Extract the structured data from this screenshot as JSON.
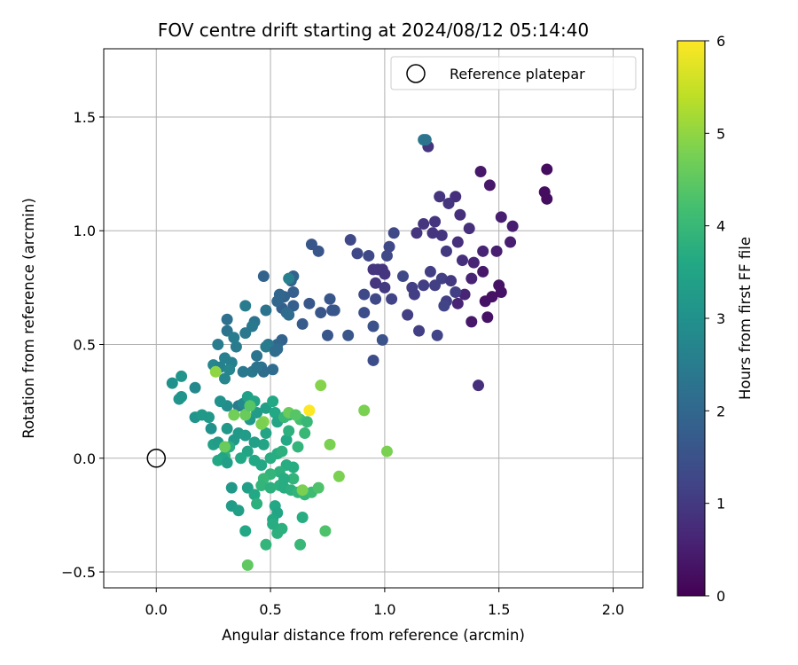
{
  "chart_data": {
    "type": "scatter",
    "title": "FOV centre drift starting at 2024/08/12 05:14:40",
    "xlabel": "Angular distance from reference (arcmin)",
    "ylabel": "Rotation from reference (arcmin)",
    "xlim": [
      -0.23,
      2.13
    ],
    "ylim": [
      -0.57,
      1.8
    ],
    "xticks": [
      0.0,
      0.5,
      1.0,
      1.5,
      2.0
    ],
    "xtick_labels": [
      "0.0",
      "0.5",
      "1.0",
      "1.5",
      "2.0"
    ],
    "yticks": [
      -0.5,
      0.0,
      0.5,
      1.0,
      1.5
    ],
    "ytick_labels": [
      "−0.5",
      "0.0",
      "0.5",
      "1.0",
      "1.5"
    ],
    "grid": true,
    "legend": {
      "placement": "top-right",
      "entries": [
        {
          "label": "Reference platepar",
          "marker": "open-circle"
        }
      ]
    },
    "reference_point": {
      "x": 0.0,
      "y": 0.0
    },
    "colorbar": {
      "label": "Hours from first FF file",
      "range": [
        0,
        6
      ],
      "ticks": [
        0,
        1,
        2,
        3,
        4,
        5,
        6
      ],
      "colormap": "viridis"
    },
    "points": [
      {
        "x": 1.71,
        "y": 1.27,
        "c": 0.2
      },
      {
        "x": 1.7,
        "y": 1.17,
        "c": 0.2
      },
      {
        "x": 1.71,
        "y": 1.14,
        "c": 0.2
      },
      {
        "x": 1.42,
        "y": 1.26,
        "c": 0.4
      },
      {
        "x": 1.46,
        "y": 1.2,
        "c": 0.4
      },
      {
        "x": 1.51,
        "y": 1.06,
        "c": 0.5
      },
      {
        "x": 1.56,
        "y": 1.02,
        "c": 0.5
      },
      {
        "x": 1.55,
        "y": 0.95,
        "c": 0.5
      },
      {
        "x": 1.49,
        "y": 0.91,
        "c": 0.5
      },
      {
        "x": 1.43,
        "y": 0.82,
        "c": 0.4
      },
      {
        "x": 1.5,
        "y": 0.76,
        "c": 0.3
      },
      {
        "x": 1.51,
        "y": 0.73,
        "c": 0.3
      },
      {
        "x": 1.47,
        "y": 0.71,
        "c": 0.3
      },
      {
        "x": 1.44,
        "y": 0.69,
        "c": 0.3
      },
      {
        "x": 1.45,
        "y": 0.62,
        "c": 0.3
      },
      {
        "x": 1.38,
        "y": 0.6,
        "c": 0.4
      },
      {
        "x": 1.41,
        "y": 0.32,
        "c": 0.8
      },
      {
        "x": 1.43,
        "y": 0.91,
        "c": 0.6
      },
      {
        "x": 1.39,
        "y": 0.86,
        "c": 0.6
      },
      {
        "x": 1.38,
        "y": 0.79,
        "c": 0.6
      },
      {
        "x": 1.35,
        "y": 0.72,
        "c": 0.6
      },
      {
        "x": 1.32,
        "y": 0.68,
        "c": 0.6
      },
      {
        "x": 1.34,
        "y": 0.87,
        "c": 0.8
      },
      {
        "x": 1.32,
        "y": 0.95,
        "c": 0.8
      },
      {
        "x": 1.37,
        "y": 1.01,
        "c": 0.8
      },
      {
        "x": 1.33,
        "y": 1.07,
        "c": 0.8
      },
      {
        "x": 1.31,
        "y": 1.15,
        "c": 0.8
      },
      {
        "x": 1.28,
        "y": 1.12,
        "c": 0.9
      },
      {
        "x": 1.24,
        "y": 1.15,
        "c": 0.9
      },
      {
        "x": 1.22,
        "y": 1.04,
        "c": 0.9
      },
      {
        "x": 1.25,
        "y": 0.98,
        "c": 0.9
      },
      {
        "x": 1.21,
        "y": 0.99,
        "c": 0.9
      },
      {
        "x": 1.17,
        "y": 1.03,
        "c": 0.9
      },
      {
        "x": 1.14,
        "y": 0.99,
        "c": 0.9
      },
      {
        "x": 1.19,
        "y": 1.37,
        "c": 0.9
      },
      {
        "x": 1.17,
        "y": 1.4,
        "c": 2.4
      },
      {
        "x": 1.27,
        "y": 0.91,
        "c": 1.0
      },
      {
        "x": 1.25,
        "y": 0.79,
        "c": 1.1
      },
      {
        "x": 1.29,
        "y": 0.78,
        "c": 1.0
      },
      {
        "x": 1.31,
        "y": 0.73,
        "c": 1.1
      },
      {
        "x": 1.27,
        "y": 0.69,
        "c": 1.1
      },
      {
        "x": 1.22,
        "y": 0.76,
        "c": 1.1
      },
      {
        "x": 1.2,
        "y": 0.82,
        "c": 1.1
      },
      {
        "x": 1.17,
        "y": 0.76,
        "c": 1.1
      },
      {
        "x": 1.13,
        "y": 0.72,
        "c": 1.1
      },
      {
        "x": 1.12,
        "y": 0.75,
        "c": 1.1
      },
      {
        "x": 1.26,
        "y": 0.67,
        "c": 1.2
      },
      {
        "x": 1.23,
        "y": 0.54,
        "c": 1.2
      },
      {
        "x": 1.15,
        "y": 0.56,
        "c": 1.1
      },
      {
        "x": 1.1,
        "y": 0.63,
        "c": 1.1
      },
      {
        "x": 1.08,
        "y": 0.8,
        "c": 1.3
      },
      {
        "x": 1.02,
        "y": 0.93,
        "c": 1.3
      },
      {
        "x": 1.04,
        "y": 0.99,
        "c": 1.3
      },
      {
        "x": 1.01,
        "y": 0.89,
        "c": 1.3
      },
      {
        "x": 0.97,
        "y": 0.83,
        "c": 0.9
      },
      {
        "x": 0.99,
        "y": 0.83,
        "c": 0.9
      },
      {
        "x": 1.0,
        "y": 0.81,
        "c": 0.9
      },
      {
        "x": 0.95,
        "y": 0.83,
        "c": 0.9
      },
      {
        "x": 0.96,
        "y": 0.77,
        "c": 0.9
      },
      {
        "x": 1.0,
        "y": 0.75,
        "c": 1.0
      },
      {
        "x": 1.03,
        "y": 0.7,
        "c": 1.2
      },
      {
        "x": 0.96,
        "y": 0.7,
        "c": 1.3
      },
      {
        "x": 0.91,
        "y": 0.72,
        "c": 1.3
      },
      {
        "x": 0.93,
        "y": 0.89,
        "c": 1.3
      },
      {
        "x": 0.88,
        "y": 0.9,
        "c": 1.3
      },
      {
        "x": 0.85,
        "y": 0.96,
        "c": 1.3
      },
      {
        "x": 0.91,
        "y": 0.64,
        "c": 1.4
      },
      {
        "x": 0.95,
        "y": 0.58,
        "c": 1.5
      },
      {
        "x": 0.99,
        "y": 0.52,
        "c": 1.5
      },
      {
        "x": 0.95,
        "y": 0.43,
        "c": 1.4
      },
      {
        "x": 1.18,
        "y": 1.4,
        "c": 2.3
      },
      {
        "x": 0.68,
        "y": 0.94,
        "c": 1.6
      },
      {
        "x": 0.71,
        "y": 0.91,
        "c": 1.6
      },
      {
        "x": 0.76,
        "y": 0.7,
        "c": 1.6
      },
      {
        "x": 0.77,
        "y": 0.65,
        "c": 1.6
      },
      {
        "x": 0.78,
        "y": 0.65,
        "c": 1.6
      },
      {
        "x": 0.72,
        "y": 0.64,
        "c": 1.6
      },
      {
        "x": 0.67,
        "y": 0.68,
        "c": 1.6
      },
      {
        "x": 0.75,
        "y": 0.54,
        "c": 1.6
      },
      {
        "x": 0.84,
        "y": 0.54,
        "c": 1.6
      },
      {
        "x": 0.64,
        "y": 0.59,
        "c": 1.7
      },
      {
        "x": 0.6,
        "y": 0.67,
        "c": 1.8
      },
      {
        "x": 0.6,
        "y": 0.73,
        "c": 1.8
      },
      {
        "x": 0.55,
        "y": 0.66,
        "c": 1.8
      },
      {
        "x": 0.56,
        "y": 0.71,
        "c": 1.9
      },
      {
        "x": 0.59,
        "y": 0.78,
        "c": 1.9
      },
      {
        "x": 0.6,
        "y": 0.8,
        "c": 1.9
      },
      {
        "x": 0.47,
        "y": 0.8,
        "c": 1.9
      },
      {
        "x": 0.54,
        "y": 0.72,
        "c": 2.0
      },
      {
        "x": 0.53,
        "y": 0.69,
        "c": 2.0
      },
      {
        "x": 0.57,
        "y": 0.64,
        "c": 2.1
      },
      {
        "x": 0.58,
        "y": 0.63,
        "c": 2.1
      },
      {
        "x": 0.58,
        "y": 0.79,
        "c": 2.6
      },
      {
        "x": 0.48,
        "y": 0.65,
        "c": 2.3
      },
      {
        "x": 0.55,
        "y": 0.52,
        "c": 1.9
      },
      {
        "x": 0.53,
        "y": 0.5,
        "c": 2.0
      },
      {
        "x": 0.53,
        "y": 0.48,
        "c": 2.1
      },
      {
        "x": 0.49,
        "y": 0.5,
        "c": 2.4
      },
      {
        "x": 0.48,
        "y": 0.49,
        "c": 2.5
      },
      {
        "x": 0.44,
        "y": 0.45,
        "c": 2.3
      },
      {
        "x": 0.46,
        "y": 0.4,
        "c": 2.2
      },
      {
        "x": 0.47,
        "y": 0.38,
        "c": 2.1
      },
      {
        "x": 0.52,
        "y": 0.47,
        "c": 2.1
      },
      {
        "x": 0.51,
        "y": 0.39,
        "c": 2.1
      },
      {
        "x": 0.43,
        "y": 0.6,
        "c": 2.3
      },
      {
        "x": 0.42,
        "y": 0.58,
        "c": 2.4
      },
      {
        "x": 0.39,
        "y": 0.55,
        "c": 2.4
      },
      {
        "x": 0.39,
        "y": 0.67,
        "c": 2.5
      },
      {
        "x": 0.31,
        "y": 0.61,
        "c": 2.2
      },
      {
        "x": 0.31,
        "y": 0.56,
        "c": 2.3
      },
      {
        "x": 0.27,
        "y": 0.5,
        "c": 2.5
      },
      {
        "x": 0.34,
        "y": 0.53,
        "c": 2.5
      },
      {
        "x": 0.35,
        "y": 0.49,
        "c": 2.5
      },
      {
        "x": 0.3,
        "y": 0.44,
        "c": 2.6
      },
      {
        "x": 0.33,
        "y": 0.42,
        "c": 2.6
      },
      {
        "x": 0.25,
        "y": 0.41,
        "c": 2.7
      },
      {
        "x": 0.28,
        "y": 0.4,
        "c": 2.6
      },
      {
        "x": 0.32,
        "y": 0.39,
        "c": 2.7
      },
      {
        "x": 0.3,
        "y": 0.35,
        "c": 2.7
      },
      {
        "x": 0.38,
        "y": 0.38,
        "c": 2.4
      },
      {
        "x": 0.42,
        "y": 0.38,
        "c": 2.4
      },
      {
        "x": 0.44,
        "y": 0.4,
        "c": 2.3
      },
      {
        "x": 0.36,
        "y": 0.23,
        "c": 2.5
      },
      {
        "x": 0.38,
        "y": 0.24,
        "c": 2.8
      },
      {
        "x": 0.31,
        "y": 0.23,
        "c": 2.9
      },
      {
        "x": 0.28,
        "y": 0.25,
        "c": 3.0
      },
      {
        "x": 0.07,
        "y": 0.33,
        "c": 3.0
      },
      {
        "x": 0.11,
        "y": 0.36,
        "c": 3.1
      },
      {
        "x": 0.11,
        "y": 0.27,
        "c": 3.1
      },
      {
        "x": 0.1,
        "y": 0.26,
        "c": 3.1
      },
      {
        "x": 0.17,
        "y": 0.31,
        "c": 2.8
      },
      {
        "x": 0.17,
        "y": 0.18,
        "c": 3.1
      },
      {
        "x": 0.2,
        "y": 0.19,
        "c": 3.2
      },
      {
        "x": 0.23,
        "y": 0.18,
        "c": 3.2
      },
      {
        "x": 0.24,
        "y": 0.13,
        "c": 3.0
      },
      {
        "x": 0.25,
        "y": 0.06,
        "c": 3.4
      },
      {
        "x": 0.27,
        "y": 0.07,
        "c": 3.3
      },
      {
        "x": 0.31,
        "y": 0.13,
        "c": 3.2
      },
      {
        "x": 0.34,
        "y": 0.08,
        "c": 3.2
      },
      {
        "x": 0.36,
        "y": 0.11,
        "c": 3.2
      },
      {
        "x": 0.39,
        "y": 0.1,
        "c": 3.3
      },
      {
        "x": 0.41,
        "y": 0.17,
        "c": 3.2
      },
      {
        "x": 0.44,
        "y": 0.2,
        "c": 3.3
      },
      {
        "x": 0.4,
        "y": 0.27,
        "c": 3.4
      },
      {
        "x": 0.43,
        "y": 0.25,
        "c": 3.5
      },
      {
        "x": 0.48,
        "y": 0.22,
        "c": 3.4
      },
      {
        "x": 0.51,
        "y": 0.25,
        "c": 3.6
      },
      {
        "x": 0.52,
        "y": 0.2,
        "c": 3.6
      },
      {
        "x": 0.53,
        "y": 0.16,
        "c": 3.5
      },
      {
        "x": 0.48,
        "y": 0.11,
        "c": 3.5
      },
      {
        "x": 0.47,
        "y": 0.06,
        "c": 3.5
      },
      {
        "x": 0.43,
        "y": 0.07,
        "c": 3.4
      },
      {
        "x": 0.4,
        "y": 0.03,
        "c": 3.5
      },
      {
        "x": 0.37,
        "y": 0.0,
        "c": 3.6
      },
      {
        "x": 0.32,
        "y": 0.05,
        "c": 3.7
      },
      {
        "x": 0.3,
        "y": 0.01,
        "c": 3.8
      },
      {
        "x": 0.29,
        "y": 0.0,
        "c": 3.5
      },
      {
        "x": 0.27,
        "y": -0.01,
        "c": 3.6
      },
      {
        "x": 0.31,
        "y": -0.02,
        "c": 3.4
      },
      {
        "x": 0.43,
        "y": -0.01,
        "c": 3.6
      },
      {
        "x": 0.46,
        "y": -0.03,
        "c": 3.6
      },
      {
        "x": 0.5,
        "y": 0.0,
        "c": 3.7
      },
      {
        "x": 0.53,
        "y": 0.02,
        "c": 3.7
      },
      {
        "x": 0.55,
        "y": 0.03,
        "c": 3.8
      },
      {
        "x": 0.57,
        "y": -0.03,
        "c": 3.7
      },
      {
        "x": 0.6,
        "y": -0.04,
        "c": 3.7
      },
      {
        "x": 0.57,
        "y": 0.08,
        "c": 3.6
      },
      {
        "x": 0.58,
        "y": 0.12,
        "c": 3.8
      },
      {
        "x": 0.58,
        "y": 0.19,
        "c": 3.9
      },
      {
        "x": 0.56,
        "y": 0.18,
        "c": 4.0
      },
      {
        "x": 0.63,
        "y": 0.17,
        "c": 4.2
      },
      {
        "x": 0.66,
        "y": 0.16,
        "c": 4.0
      },
      {
        "x": 0.65,
        "y": 0.11,
        "c": 4.0
      },
      {
        "x": 0.62,
        "y": 0.05,
        "c": 3.9
      },
      {
        "x": 0.54,
        "y": -0.06,
        "c": 3.8
      },
      {
        "x": 0.5,
        "y": -0.07,
        "c": 3.9
      },
      {
        "x": 0.47,
        "y": -0.09,
        "c": 4.0
      },
      {
        "x": 0.46,
        "y": -0.12,
        "c": 3.9
      },
      {
        "x": 0.5,
        "y": -0.13,
        "c": 3.8
      },
      {
        "x": 0.54,
        "y": -0.12,
        "c": 3.8
      },
      {
        "x": 0.56,
        "y": -0.13,
        "c": 3.7
      },
      {
        "x": 0.59,
        "y": -0.14,
        "c": 3.8
      },
      {
        "x": 0.62,
        "y": -0.15,
        "c": 3.9
      },
      {
        "x": 0.65,
        "y": -0.16,
        "c": 4.0
      },
      {
        "x": 0.68,
        "y": -0.15,
        "c": 4.1
      },
      {
        "x": 0.64,
        "y": -0.14,
        "c": 4.8
      },
      {
        "x": 0.71,
        "y": -0.13,
        "c": 4.3
      },
      {
        "x": 0.6,
        "y": -0.09,
        "c": 3.9
      },
      {
        "x": 0.56,
        "y": -0.09,
        "c": 3.7
      },
      {
        "x": 0.4,
        "y": -0.13,
        "c": 3.4
      },
      {
        "x": 0.33,
        "y": -0.13,
        "c": 3.2
      },
      {
        "x": 0.33,
        "y": -0.21,
        "c": 3.3
      },
      {
        "x": 0.36,
        "y": -0.23,
        "c": 3.4
      },
      {
        "x": 0.43,
        "y": -0.16,
        "c": 3.6
      },
      {
        "x": 0.44,
        "y": -0.2,
        "c": 3.8
      },
      {
        "x": 0.52,
        "y": -0.21,
        "c": 3.6
      },
      {
        "x": 0.53,
        "y": -0.24,
        "c": 3.5
      },
      {
        "x": 0.51,
        "y": -0.27,
        "c": 3.6
      },
      {
        "x": 0.55,
        "y": -0.31,
        "c": 3.8
      },
      {
        "x": 0.53,
        "y": -0.33,
        "c": 3.8
      },
      {
        "x": 0.51,
        "y": -0.29,
        "c": 3.7
      },
      {
        "x": 0.64,
        "y": -0.26,
        "c": 3.7
      },
      {
        "x": 0.39,
        "y": -0.32,
        "c": 3.6
      },
      {
        "x": 0.48,
        "y": -0.38,
        "c": 3.9
      },
      {
        "x": 0.63,
        "y": -0.38,
        "c": 4.0
      },
      {
        "x": 0.74,
        "y": -0.32,
        "c": 4.3
      },
      {
        "x": 0.4,
        "y": -0.47,
        "c": 4.5
      },
      {
        "x": 0.26,
        "y": 0.38,
        "c": 5.0
      },
      {
        "x": 0.34,
        "y": 0.19,
        "c": 4.7
      },
      {
        "x": 0.39,
        "y": 0.19,
        "c": 4.6
      },
      {
        "x": 0.41,
        "y": 0.23,
        "c": 4.4
      },
      {
        "x": 0.47,
        "y": 0.16,
        "c": 4.9
      },
      {
        "x": 0.46,
        "y": 0.15,
        "c": 4.8
      },
      {
        "x": 0.58,
        "y": 0.2,
        "c": 4.6
      },
      {
        "x": 0.61,
        "y": 0.19,
        "c": 4.4
      },
      {
        "x": 0.72,
        "y": 0.32,
        "c": 4.9
      },
      {
        "x": 0.67,
        "y": 0.21,
        "c": 6.0
      },
      {
        "x": 0.91,
        "y": 0.21,
        "c": 4.8
      },
      {
        "x": 0.76,
        "y": 0.06,
        "c": 4.8
      },
      {
        "x": 1.01,
        "y": 0.03,
        "c": 4.8
      },
      {
        "x": 0.8,
        "y": -0.08,
        "c": 4.8
      },
      {
        "x": 0.3,
        "y": 0.05,
        "c": 4.6
      }
    ]
  }
}
